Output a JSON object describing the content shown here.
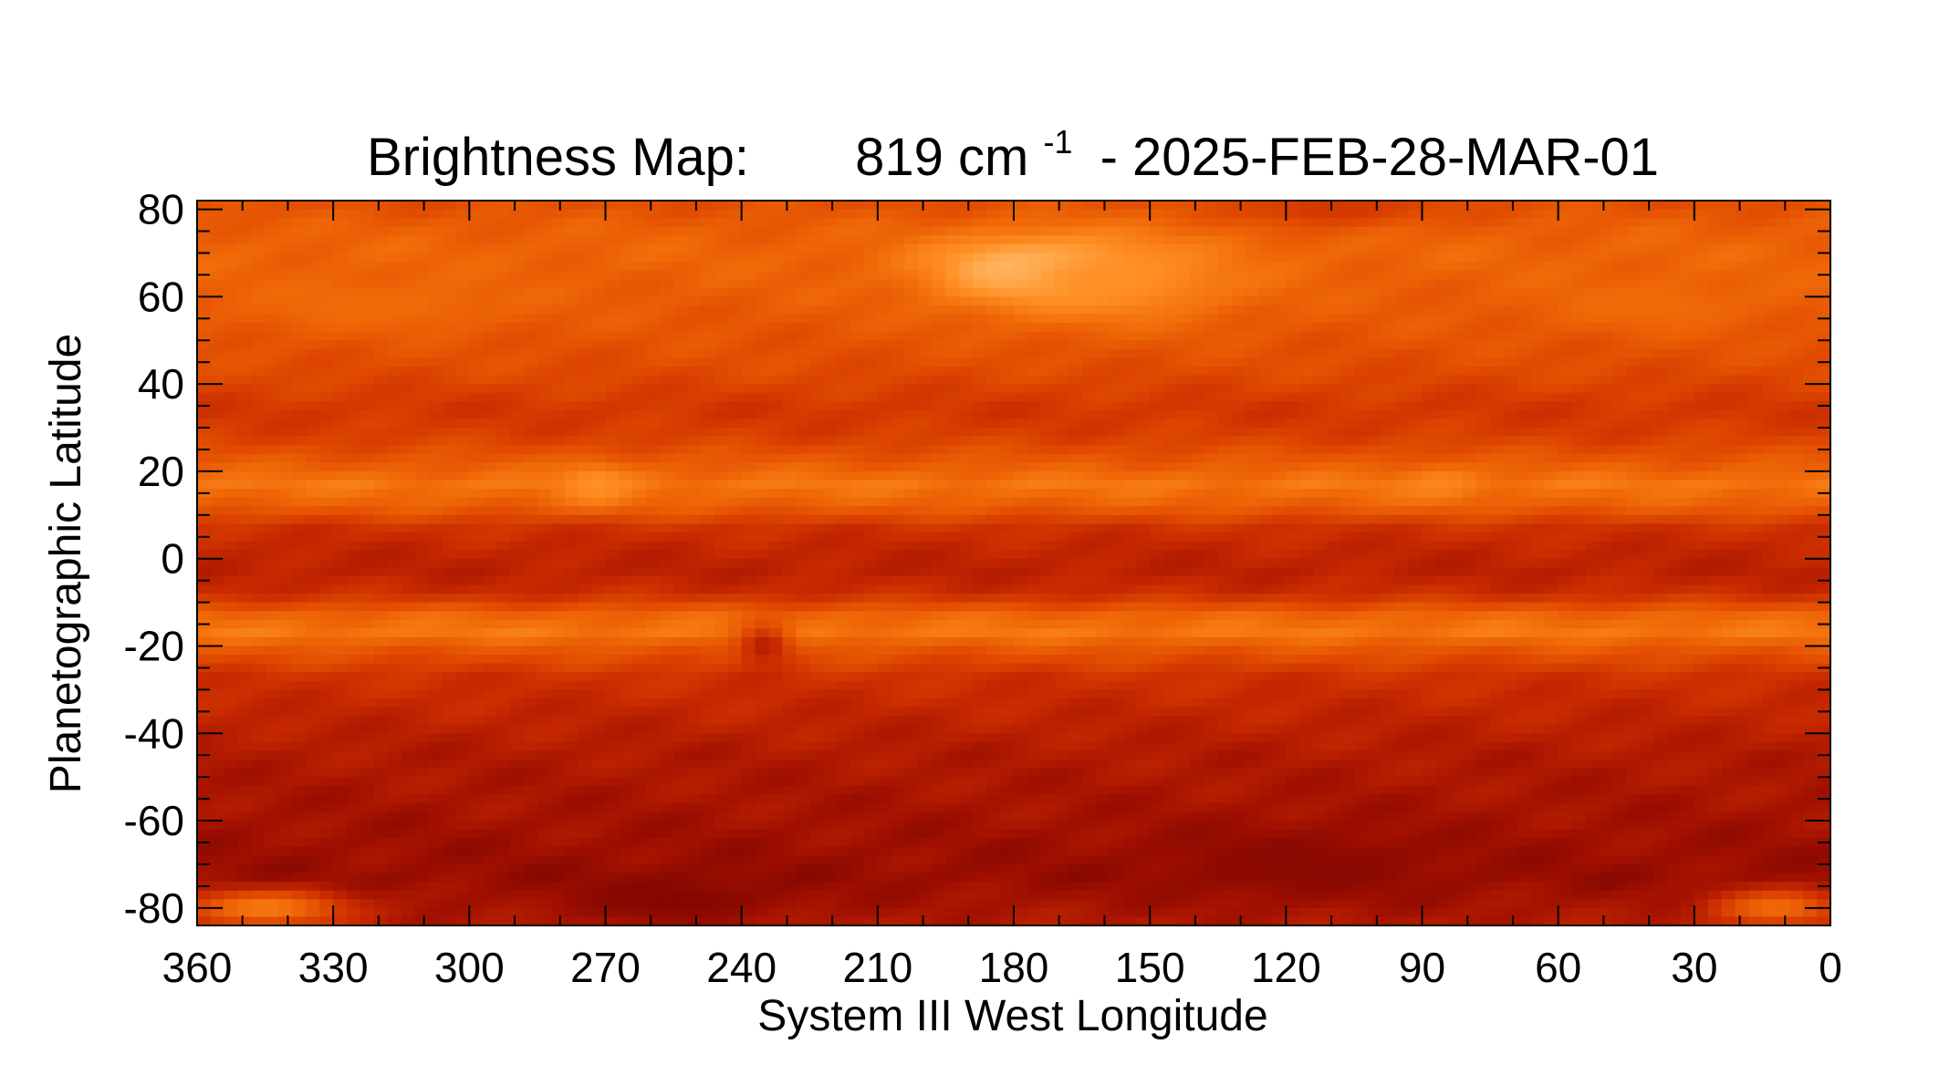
{
  "chart_data": {
    "type": "heatmap",
    "title_prefix": "Brightness Map:",
    "title_value": "819 cm",
    "title_superscript": "-1",
    "title_suffix": "- 2025-FEB-28-MAR-01",
    "xlabel": "System III West Longitude",
    "ylabel": "Planetographic Latitude",
    "xlim": [
      360,
      0
    ],
    "ylim": [
      -84,
      82
    ],
    "x_ticks": [
      360,
      330,
      300,
      270,
      240,
      210,
      180,
      150,
      120,
      90,
      60,
      30,
      0
    ],
    "x_tick_labels": [
      "360",
      "330",
      "300",
      "270",
      "240",
      "210",
      "180",
      "150",
      "120",
      "90",
      "60",
      "30",
      "0"
    ],
    "y_ticks": [
      80,
      60,
      40,
      20,
      0,
      -20,
      -40,
      -60,
      -80
    ],
    "y_tick_labels": [
      "80",
      "60",
      "40",
      "20",
      "0",
      "-20",
      "-40",
      "-60",
      "-80"
    ],
    "colormap": [
      "#6e0000",
      "#a01000",
      "#c82a00",
      "#e04a00",
      "#f06a08",
      "#ff8e22",
      "#ffc070",
      "#ffffff"
    ],
    "grid": false,
    "latitude_bands": [
      {
        "lat": 82,
        "value": 0.45
      },
      {
        "lat": 76,
        "value": 0.52
      },
      {
        "lat": 70,
        "value": 0.55
      },
      {
        "lat": 62,
        "value": 0.52
      },
      {
        "lat": 52,
        "value": 0.48
      },
      {
        "lat": 44,
        "value": 0.44
      },
      {
        "lat": 38,
        "value": 0.38
      },
      {
        "lat": 34,
        "value": 0.34
      },
      {
        "lat": 28,
        "value": 0.38
      },
      {
        "lat": 22,
        "value": 0.5
      },
      {
        "lat": 17,
        "value": 0.62
      },
      {
        "lat": 12,
        "value": 0.52
      },
      {
        "lat": 7,
        "value": 0.32
      },
      {
        "lat": 2,
        "value": 0.26
      },
      {
        "lat": -3,
        "value": 0.24
      },
      {
        "lat": -8,
        "value": 0.3
      },
      {
        "lat": -13,
        "value": 0.55
      },
      {
        "lat": -17,
        "value": 0.62
      },
      {
        "lat": -21,
        "value": 0.48
      },
      {
        "lat": -27,
        "value": 0.32
      },
      {
        "lat": -35,
        "value": 0.26
      },
      {
        "lat": -45,
        "value": 0.2
      },
      {
        "lat": -55,
        "value": 0.17
      },
      {
        "lat": -65,
        "value": 0.14
      },
      {
        "lat": -73,
        "value": 0.12
      },
      {
        "lat": -79,
        "value": 0.16
      },
      {
        "lat": -84,
        "value": 0.2
      }
    ],
    "features": [
      {
        "lon": 174,
        "lat": 66,
        "dlon": 22,
        "dlat": 7,
        "value": 1.0
      },
      {
        "lon": 160,
        "lat": 64,
        "dlon": 30,
        "dlat": 10,
        "value": 0.72
      },
      {
        "lon": 272,
        "lat": 17,
        "dlon": 8,
        "dlat": 5,
        "value": 0.72
      },
      {
        "lon": 86,
        "lat": 17,
        "dlon": 8,
        "dlat": 4,
        "value": 0.68
      },
      {
        "lon": 235,
        "lat": -20,
        "dlon": 6,
        "dlat": 5,
        "value": 0.22
      },
      {
        "lon": 345,
        "lat": -80,
        "dlon": 18,
        "dlat": 4,
        "value": 0.64
      },
      {
        "lon": 12,
        "lat": -80,
        "dlon": 14,
        "dlat": 4,
        "value": 0.58
      },
      {
        "lon": 255,
        "lat": -78,
        "dlon": 25,
        "dlat": 6,
        "value": 0.06
      },
      {
        "lon": 118,
        "lat": -70,
        "dlon": 30,
        "dlat": 8,
        "value": 0.08
      },
      {
        "lon": 110,
        "lat": 80,
        "dlon": 20,
        "dlat": 4,
        "value": 0.34
      },
      {
        "lon": 320,
        "lat": 58,
        "dlon": 30,
        "dlat": 6,
        "value": 0.58
      },
      {
        "lon": 40,
        "lat": 58,
        "dlon": 25,
        "dlat": 6,
        "value": 0.58
      }
    ]
  }
}
